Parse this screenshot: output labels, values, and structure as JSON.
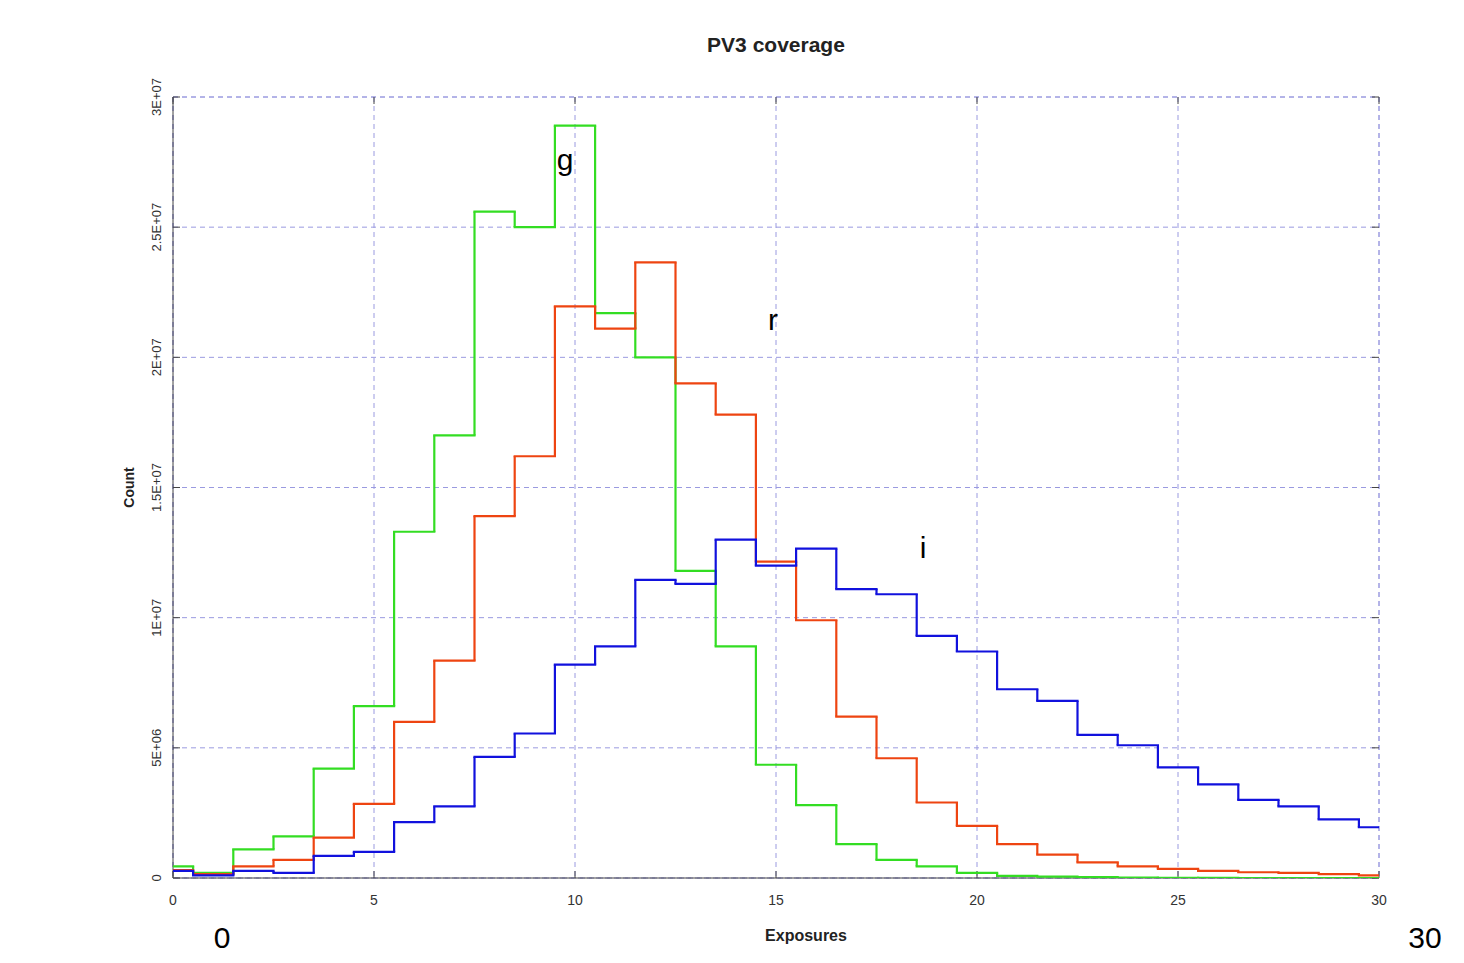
{
  "chart_data": {
    "type": "histogram",
    "title": "PV3 coverage",
    "x_label": "Exposures",
    "y_label": "Count",
    "bins": [
      -0.5,
      0.5,
      1.5,
      2.5,
      3.5,
      4.5,
      5.5,
      6.5,
      7.5,
      8.5,
      9.5,
      10.5,
      11.5,
      12.5,
      13.5,
      14.5,
      15.5,
      16.5,
      17.5,
      18.5,
      19.5,
      20.5,
      21.5,
      22.5,
      23.5,
      24.5,
      25.5,
      26.5,
      27.5,
      28.5,
      29.5,
      30.5
    ],
    "series": [
      {
        "name": "g",
        "color": "#33dd22",
        "values": [
          450000,
          200000,
          1100000,
          1600000,
          4200000,
          6600000,
          13300000,
          17000000,
          25600000,
          25000000,
          28900000,
          21700000,
          20000000,
          11800000,
          8900000,
          4350000,
          2800000,
          1300000,
          700000,
          450000,
          200000,
          80000,
          50000,
          30000,
          20000,
          10000,
          10000,
          0,
          0,
          0,
          0
        ]
      },
      {
        "name": "r",
        "color": "#ee4411",
        "values": [
          300000,
          150000,
          450000,
          700000,
          1550000,
          2850000,
          6000000,
          8350000,
          13900000,
          16200000,
          21960000,
          21100000,
          23650000,
          19000000,
          17800000,
          12150000,
          9900000,
          6200000,
          4600000,
          2900000,
          2000000,
          1300000,
          900000,
          600000,
          450000,
          350000,
          270000,
          220000,
          200000,
          150000,
          100000
        ]
      },
      {
        "name": "i",
        "color": "#1111dd",
        "values": [
          270000,
          100000,
          270000,
          200000,
          850000,
          1000000,
          2150000,
          2750000,
          4650000,
          5550000,
          8200000,
          8900000,
          11450000,
          11300000,
          13000000,
          12000000,
          12650000,
          11100000,
          10900000,
          9300000,
          8700000,
          7250000,
          6800000,
          5500000,
          5100000,
          4250000,
          3600000,
          3000000,
          2750000,
          2250000,
          1950000
        ]
      }
    ],
    "xlim": [
      0,
      30
    ],
    "xticks": [
      0,
      5,
      10,
      15,
      20,
      25,
      30
    ],
    "ylim": [
      0,
      30000000
    ],
    "yticks": [
      {
        "value": 0,
        "label": "0"
      },
      {
        "value": 5000000,
        "label": "5E+06"
      },
      {
        "value": 10000000,
        "label": "1E+07"
      },
      {
        "value": 15000000,
        "label": "1.5E+07"
      },
      {
        "value": 20000000,
        "label": "2E+07"
      },
      {
        "value": 25000000,
        "label": "2.5E+07"
      },
      {
        "value": 30000000,
        "label": "3E+07"
      }
    ],
    "grid": true,
    "annotations": [
      "0",
      "30"
    ]
  }
}
